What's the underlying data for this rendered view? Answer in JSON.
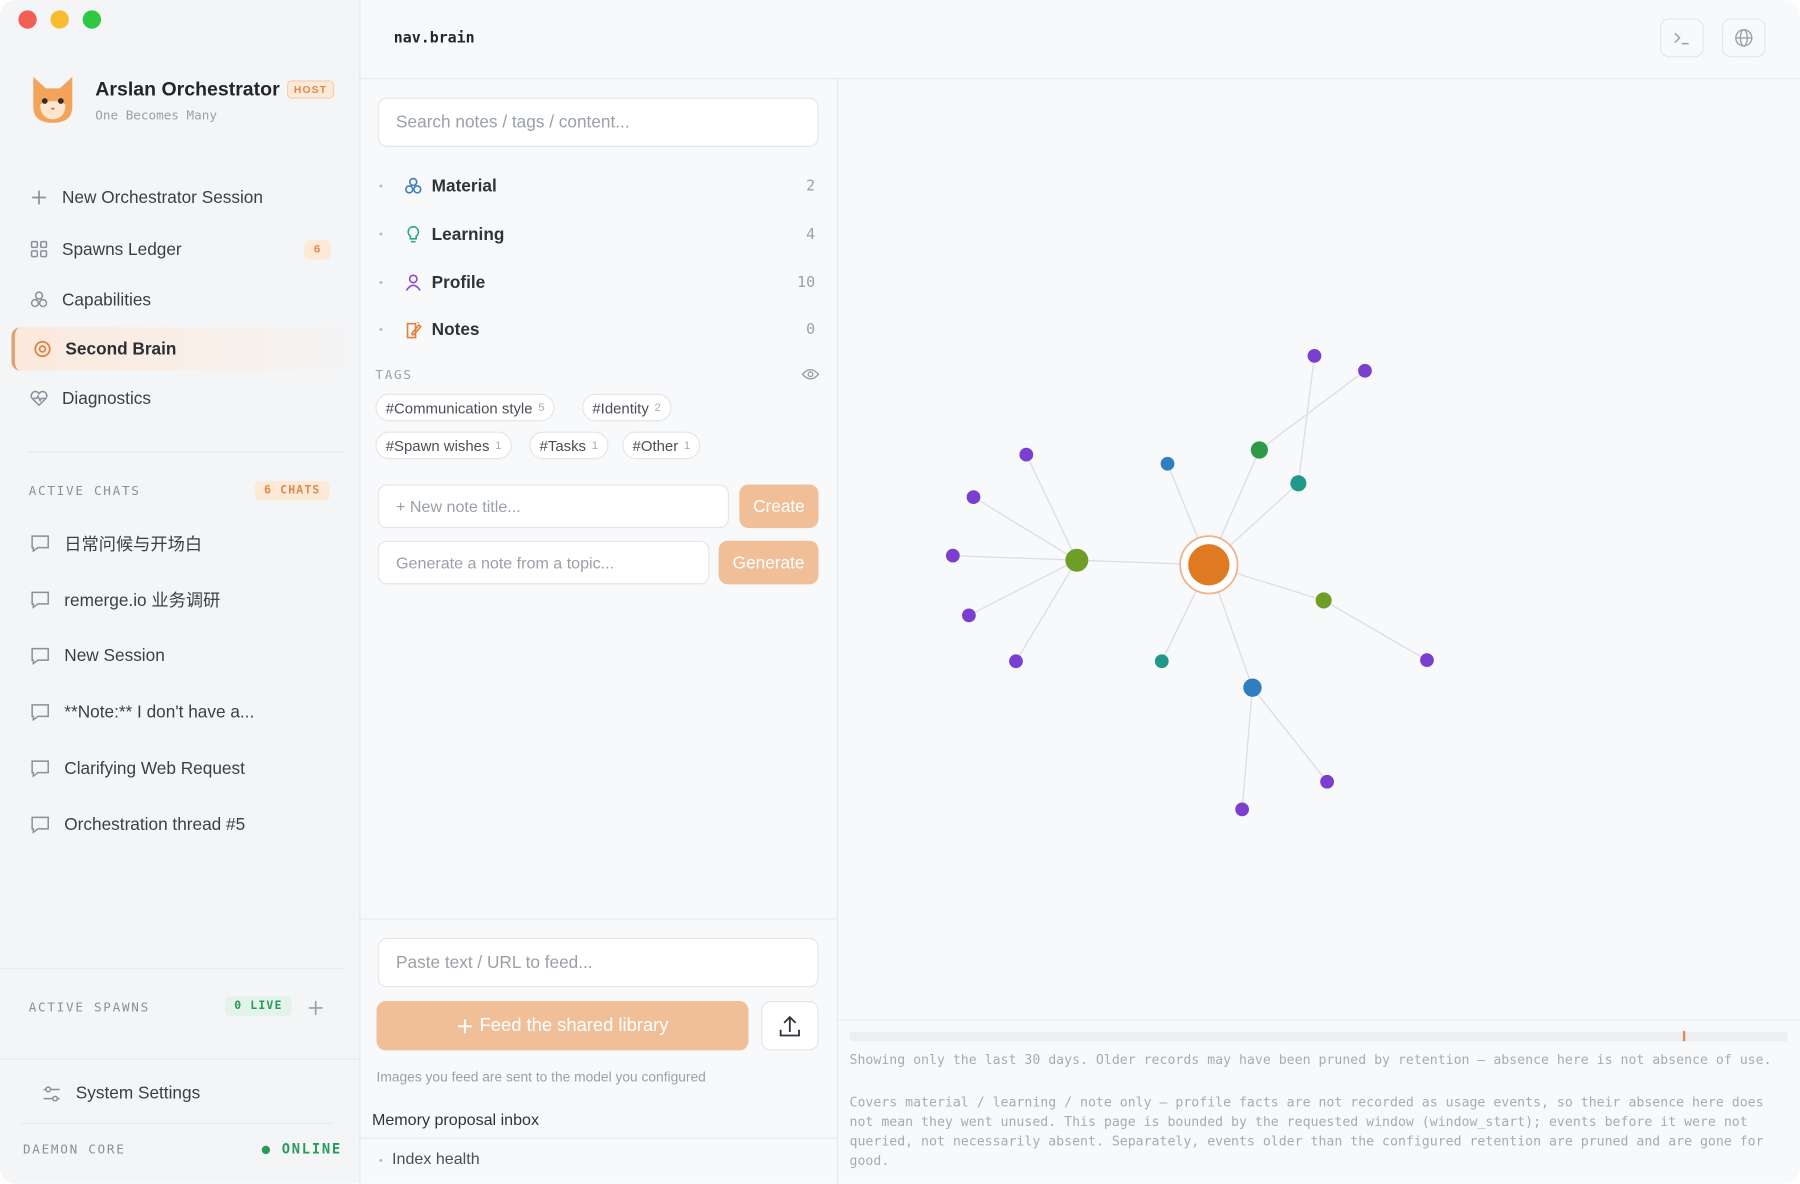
{
  "window": {
    "nav_path": "nav.brain"
  },
  "sidebar": {
    "app": {
      "title": "Arslan Orchestrator",
      "badge": "HOST",
      "subtitle": "One Becomes Many"
    },
    "nav": [
      {
        "label": "New Orchestrator Session"
      },
      {
        "label": "Spawns Ledger",
        "badge": "6"
      },
      {
        "label": "Capabilities"
      },
      {
        "label": "Second Brain"
      },
      {
        "label": "Diagnostics"
      }
    ],
    "active_chats": {
      "heading": "ACTIVE CHATS",
      "badge": "6 CHATS",
      "items": [
        "日常问候与开场白",
        "remerge.io 业务调研",
        "New Session",
        "**Note:** I don't have a...",
        "Clarifying Web Request",
        "Orchestration thread #5"
      ]
    },
    "active_spawns": {
      "heading": "ACTIVE SPAWNS",
      "badge": "0 LIVE"
    },
    "settings": "System Settings",
    "footer": {
      "label": "DAEMON CORE",
      "status": "ONLINE"
    }
  },
  "library": {
    "search_placeholder": "Search notes / tags / content...",
    "categories": [
      {
        "name": "Material",
        "count": 2
      },
      {
        "name": "Learning",
        "count": 4
      },
      {
        "name": "Profile",
        "count": 10
      },
      {
        "name": "Notes",
        "count": 0
      }
    ],
    "tags_heading": "TAGS",
    "tags": [
      {
        "name": "#Communication style",
        "count": 5
      },
      {
        "name": "#Identity",
        "count": 2
      },
      {
        "name": "#Spawn wishes",
        "count": 1
      },
      {
        "name": "#Tasks",
        "count": 1
      },
      {
        "name": "#Other",
        "count": 1
      }
    ],
    "new_note": {
      "placeholder": "+ New note title...",
      "button": "Create"
    },
    "generate": {
      "placeholder": "Generate a note from a topic...",
      "button": "Generate"
    },
    "feed": {
      "placeholder": "Paste text / URL to feed...",
      "button": "Feed the shared library",
      "caption": "Images you feed are sent to the model you configured"
    },
    "inbox": "Memory proposal inbox",
    "index_health": "Index health"
  },
  "graph": {
    "notes": [
      "Showing only the last 30 days. Older records may have been pruned by retention — absence here is not absence of use.",
      "Covers material / learning / note only — profile facts are not recorded as usage events, so their absence here does not mean they went unused. This page is bounded by the requested window (window_start); events before it were not queried, not necessarily absent. Separately, events older than the configured retention are pruned and are gone for good."
    ]
  }
}
